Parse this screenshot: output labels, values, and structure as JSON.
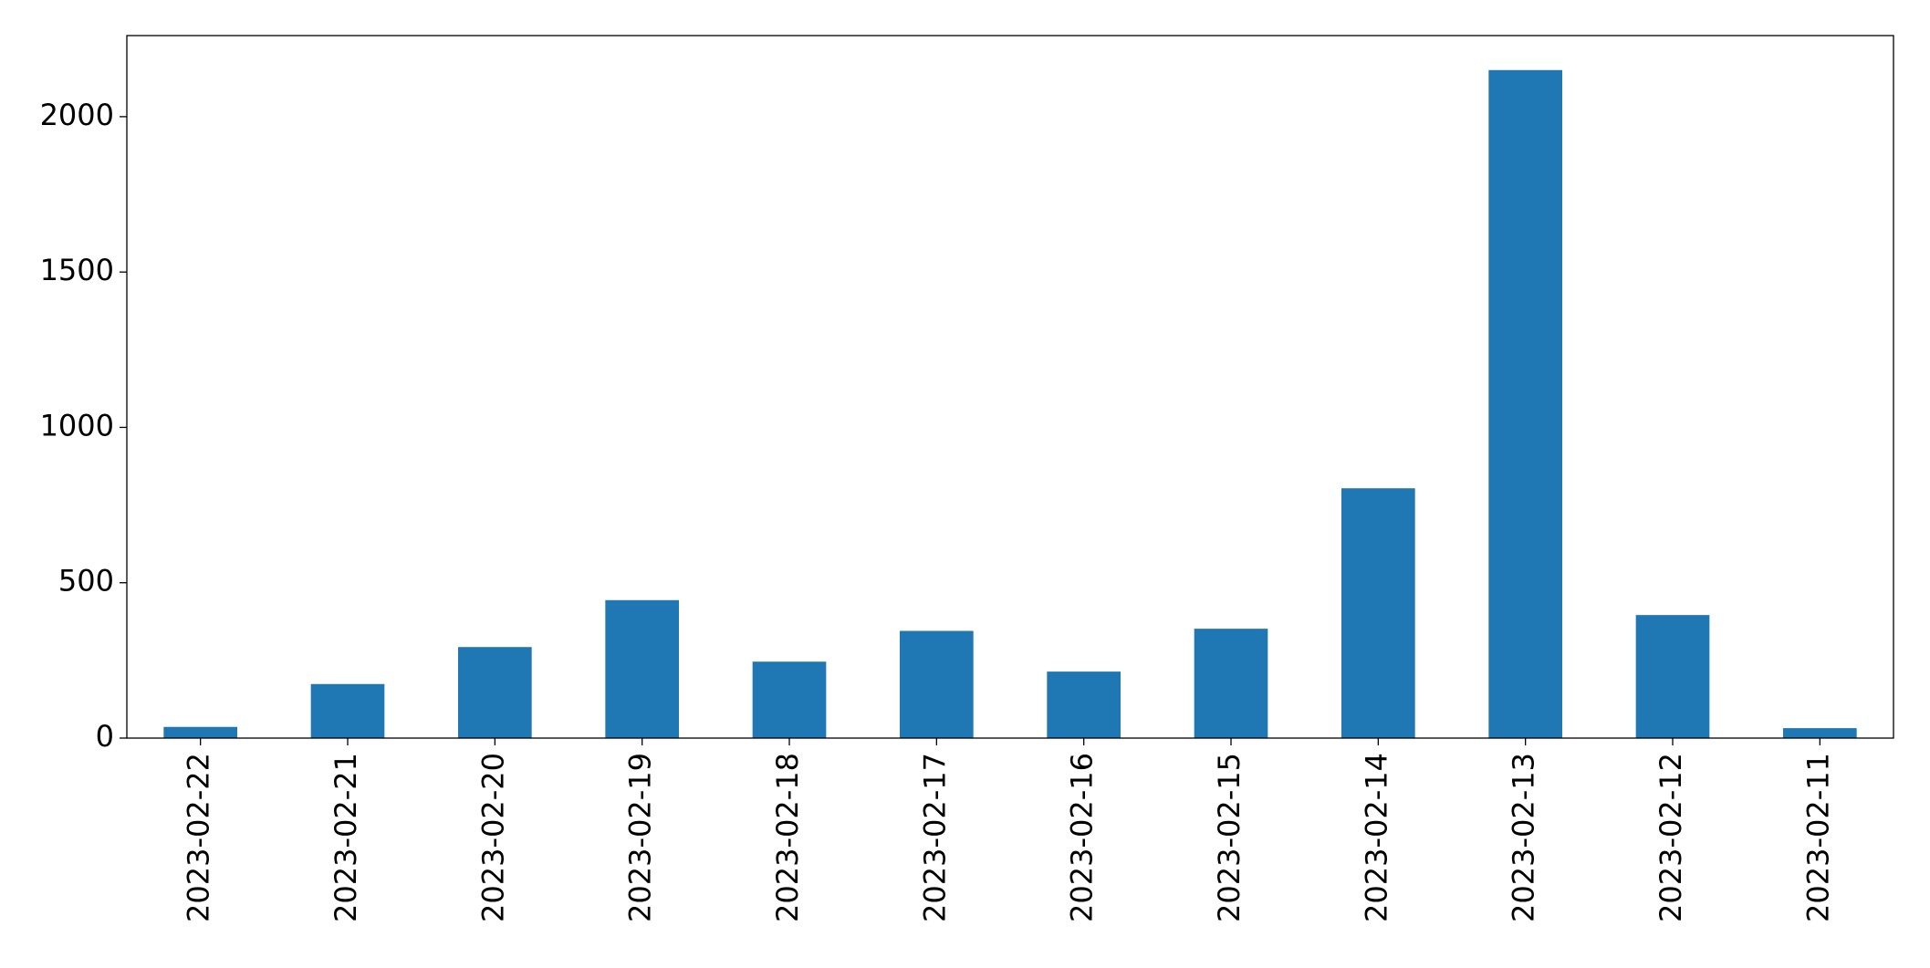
{
  "chart_data": {
    "type": "bar",
    "categories": [
      "2023-02-22",
      "2023-02-21",
      "2023-02-20",
      "2023-02-19",
      "2023-02-18",
      "2023-02-17",
      "2023-02-16",
      "2023-02-15",
      "2023-02-14",
      "2023-02-13",
      "2023-02-12",
      "2023-02-11"
    ],
    "values": [
      36,
      174,
      293,
      444,
      246,
      345,
      214,
      352,
      804,
      2150,
      396,
      32
    ],
    "color": "#1f77b4",
    "ylim": [
      0,
      2261
    ],
    "yticks": [
      0,
      500,
      1000,
      1500,
      2000
    ],
    "grid": false
  }
}
